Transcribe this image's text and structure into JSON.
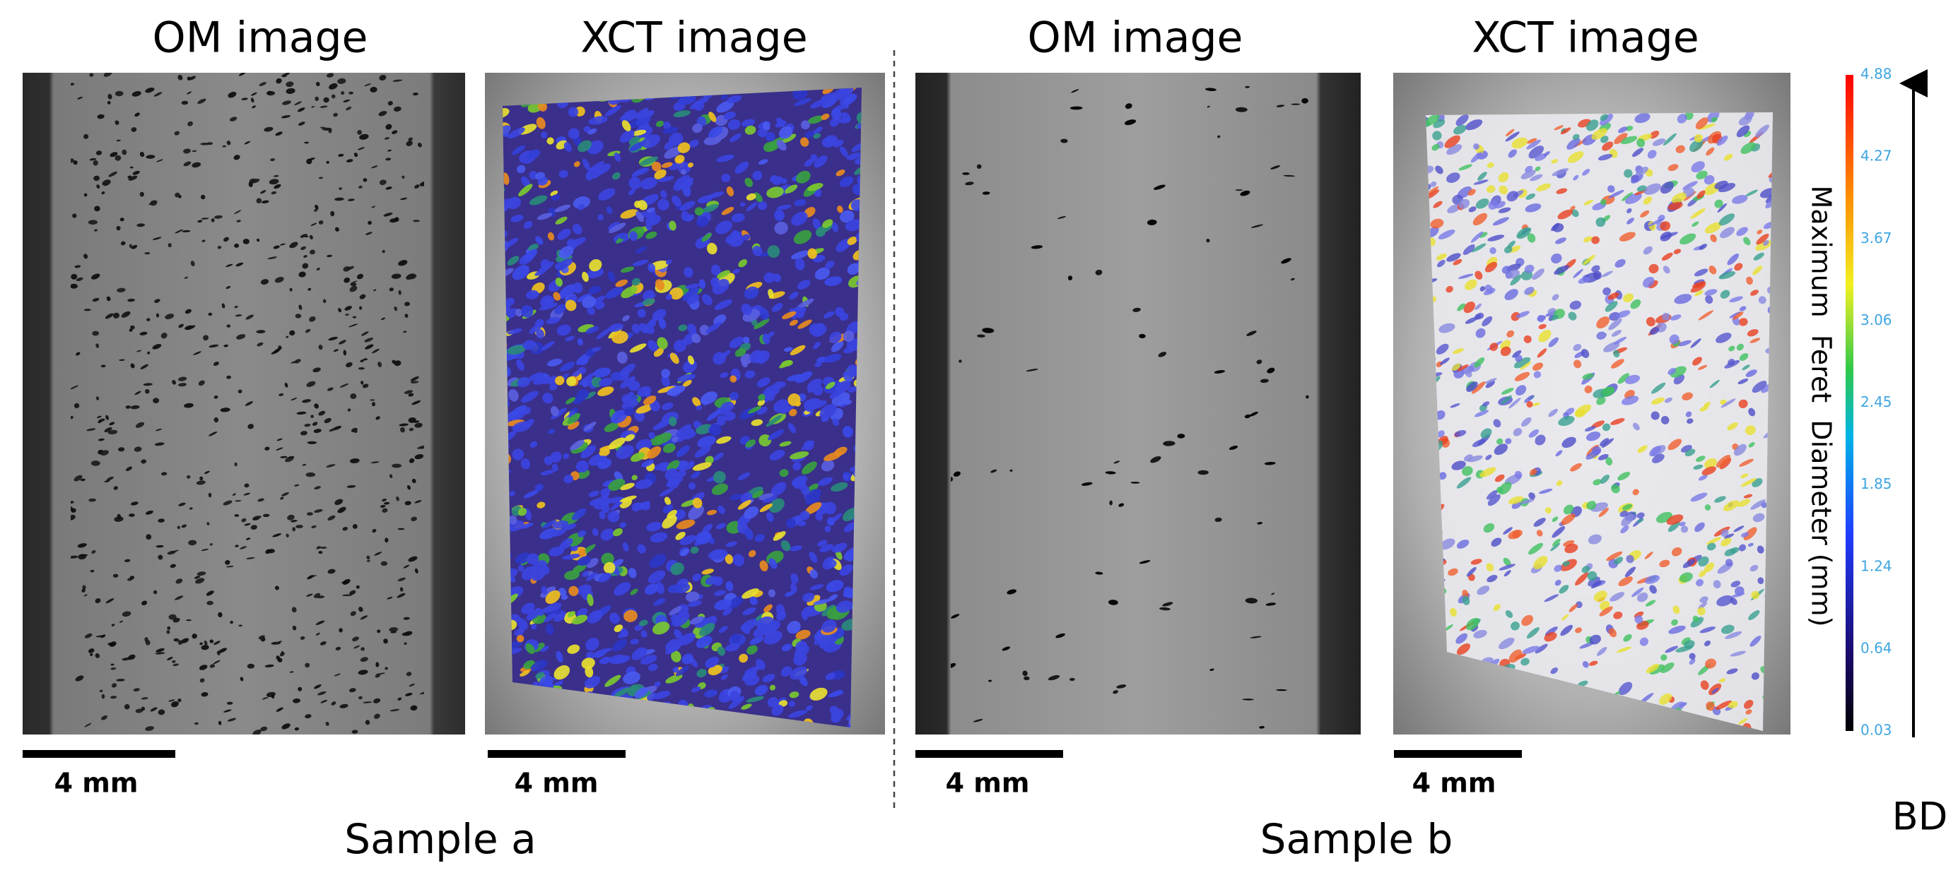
{
  "panels": [
    {
      "title": "OM image",
      "scale_bar": "4 mm"
    },
    {
      "title": "XCT image",
      "scale_bar": "4 mm"
    },
    {
      "title": "OM image",
      "scale_bar": "4 mm"
    },
    {
      "title": "XCT image",
      "scale_bar": "4 mm"
    }
  ],
  "samples": [
    "Sample a",
    "Sample b"
  ],
  "colorbar": {
    "label": "Maximum  Feret  Diameter (mm)",
    "ticks": [
      "0.03",
      "0.64",
      "1.24",
      "1.85",
      "2.45",
      "3.06",
      "3.67",
      "4.27",
      "4.88"
    ]
  },
  "build_direction": "BD"
}
